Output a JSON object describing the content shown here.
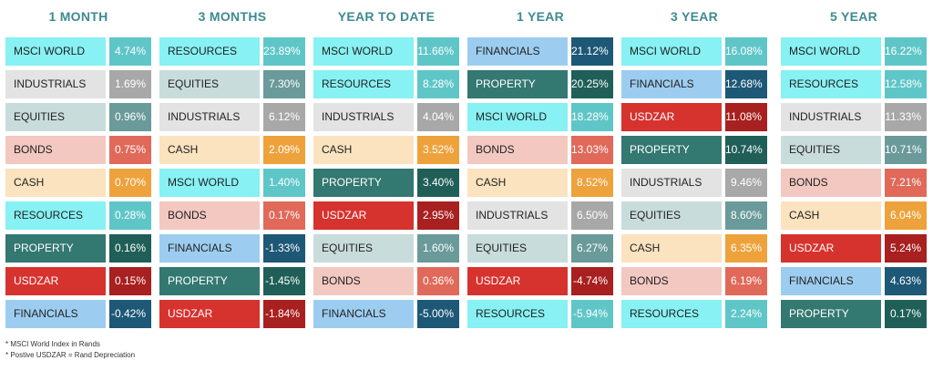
{
  "colors": {
    "MSCI WORLD": [
      "#87F1F3",
      "#5FC6C8"
    ],
    "RESOURCES": [
      "#87F1F3",
      "#5FC6C8"
    ],
    "INDUSTRIALS": [
      "#E3E3E3",
      "#A8A8A8"
    ],
    "EQUITIES": [
      "#C8DCDB",
      "#6A9A9A"
    ],
    "BONDS": [
      "#F2C8C1",
      "#E0695A"
    ],
    "CASH": [
      "#FBE3BF",
      "#EEA23C"
    ],
    "PROPERTY": [
      "#337871",
      "#1F5F58"
    ],
    "USDZAR": [
      "#D6322E",
      "#A8201F"
    ],
    "FINANCIALS": [
      "#9CCDF0",
      "#1D5876"
    ]
  },
  "light_text": [
    "PROPERTY",
    "USDZAR"
  ],
  "light_value": [
    "PROPERTY",
    "USDZAR",
    "FINANCIALS",
    "BONDS",
    "CASH",
    "INDUSTRIALS",
    "EQUITIES"
  ],
  "chart_data": {
    "type": "table",
    "columns": [
      {
        "header": "1 MONTH",
        "rows": [
          {
            "label": "MSCI WORLD",
            "value": "4.74%"
          },
          {
            "label": "INDUSTRIALS",
            "value": "1.69%"
          },
          {
            "label": "EQUITIES",
            "value": "0.96%"
          },
          {
            "label": "BONDS",
            "value": "0.75%"
          },
          {
            "label": "CASH",
            "value": "0.70%"
          },
          {
            "label": "RESOURCES",
            "value": "0.28%"
          },
          {
            "label": "PROPERTY",
            "value": "0.16%"
          },
          {
            "label": "USDZAR",
            "value": "0.15%"
          },
          {
            "label": "FINANCIALS",
            "value": "-0.42%"
          }
        ]
      },
      {
        "header": "3 MONTHS",
        "rows": [
          {
            "label": "RESOURCES",
            "value": "23.89%"
          },
          {
            "label": "EQUITIES",
            "value": "7.30%"
          },
          {
            "label": "INDUSTRIALS",
            "value": "6.12%"
          },
          {
            "label": "CASH",
            "value": "2.09%"
          },
          {
            "label": "MSCI WORLD",
            "value": "1.40%"
          },
          {
            "label": "BONDS",
            "value": "0.17%"
          },
          {
            "label": "FINANCIALS",
            "value": "-1.33%"
          },
          {
            "label": "PROPERTY",
            "value": "-1.45%"
          },
          {
            "label": "USDZAR",
            "value": "-1.84%"
          }
        ]
      },
      {
        "header": "YEAR TO DATE",
        "rows": [
          {
            "label": "MSCI WORLD",
            "value": "11.66%"
          },
          {
            "label": "RESOURCES",
            "value": "8.28%"
          },
          {
            "label": "INDUSTRIALS",
            "value": "4.04%"
          },
          {
            "label": "CASH",
            "value": "3.52%"
          },
          {
            "label": "PROPERTY",
            "value": "3.40%"
          },
          {
            "label": "USDZAR",
            "value": "2.95%"
          },
          {
            "label": "EQUITIES",
            "value": "1.60%"
          },
          {
            "label": "BONDS",
            "value": "0.36%"
          },
          {
            "label": "FINANCIALS",
            "value": "-5.00%"
          }
        ]
      },
      {
        "header": "1 YEAR",
        "rows": [
          {
            "label": "FINANCIALS",
            "value": "21.12%"
          },
          {
            "label": "PROPERTY",
            "value": "20.25%"
          },
          {
            "label": "MSCI WORLD",
            "value": "18.28%"
          },
          {
            "label": "BONDS",
            "value": "13.03%"
          },
          {
            "label": "CASH",
            "value": "8.52%"
          },
          {
            "label": "INDUSTRIALS",
            "value": "6.50%"
          },
          {
            "label": "EQUITIES",
            "value": "6.27%"
          },
          {
            "label": "USDZAR",
            "value": "-4.74%"
          },
          {
            "label": "RESOURCES",
            "value": "-5.94%"
          }
        ]
      },
      {
        "header": "3 YEAR",
        "rows": [
          {
            "label": "MSCI WORLD",
            "value": "16.08%"
          },
          {
            "label": "FINANCIALS",
            "value": "12.68%"
          },
          {
            "label": "USDZAR",
            "value": "11.08%"
          },
          {
            "label": "PROPERTY",
            "value": "10.74%"
          },
          {
            "label": "INDUSTRIALS",
            "value": "9.46%"
          },
          {
            "label": "EQUITIES",
            "value": "8.60%"
          },
          {
            "label": "CASH",
            "value": "6.35%"
          },
          {
            "label": "BONDS",
            "value": "6.19%"
          },
          {
            "label": "RESOURCES",
            "value": "2.24%"
          }
        ]
      },
      {
        "header": "5 YEAR",
        "rows": [
          {
            "label": "MSCI WORLD",
            "value": "16.22%"
          },
          {
            "label": "RESOURCES",
            "value": "12.58%"
          },
          {
            "label": "INDUSTRIALS",
            "value": "11.33%"
          },
          {
            "label": "EQUITIES",
            "value": "10.71%"
          },
          {
            "label": "BONDS",
            "value": "7.21%"
          },
          {
            "label": "CASH",
            "value": "6.04%"
          },
          {
            "label": "USDZAR",
            "value": "5.24%"
          },
          {
            "label": "FINANCIALS",
            "value": "4.63%"
          },
          {
            "label": "PROPERTY",
            "value": "0.17%"
          }
        ]
      }
    ]
  },
  "notes": {
    "line1": "* MSCI World Index in  Rands",
    "line2": "* Postive USDZAR = Rand Depreciation"
  }
}
